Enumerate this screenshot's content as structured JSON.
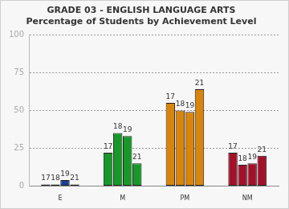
{
  "chart_data": {
    "type": "bar",
    "title": "GRADE 03 - ENGLISH LANGUAGE ARTS",
    "subtitle": "Percentage of Students by Achievement Level",
    "categories": [
      "E",
      "M",
      "PM",
      "NM"
    ],
    "colors": [
      "#1c3f94",
      "#17992a",
      "#d9850b",
      "#a3102a"
    ],
    "series": [
      {
        "name": "17",
        "values": [
          1,
          22,
          55,
          22
        ]
      },
      {
        "name": "18",
        "values": [
          1,
          35,
          50,
          14
        ]
      },
      {
        "name": "19",
        "values": [
          4,
          33,
          49,
          15
        ]
      },
      {
        "name": "21",
        "values": [
          1,
          15,
          64,
          20
        ]
      }
    ],
    "ylim": [
      0,
      100
    ],
    "yticks": [
      0,
      25,
      50,
      75,
      100
    ],
    "grid": true
  }
}
